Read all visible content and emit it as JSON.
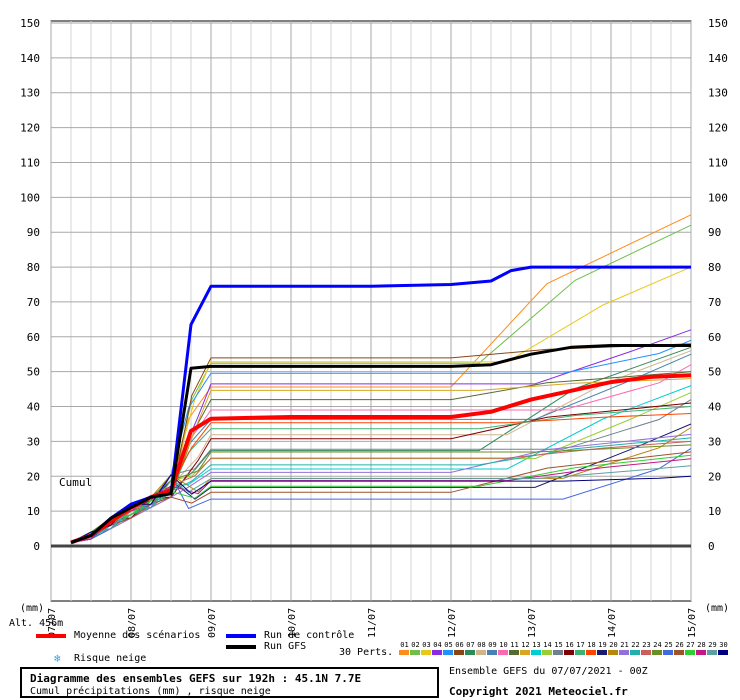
{
  "chart_data": {
    "type": "line",
    "annotation": "Cumul",
    "y_unit_label": "(mm)",
    "y_range": [
      0,
      150
    ],
    "y_ticks": [
      0,
      10,
      20,
      30,
      40,
      50,
      60,
      70,
      80,
      90,
      100,
      110,
      120,
      130,
      140,
      150
    ],
    "x_ticks": [
      "07/07",
      "08/07",
      "09/07",
      "10/07",
      "11/07",
      "12/07",
      "13/07",
      "14/07",
      "15/07"
    ],
    "x_range_days": [
      0,
      8
    ],
    "series": [
      {
        "name": "Moyenne des scénarios",
        "color": "#ff0000",
        "width": 4,
        "points": [
          [
            0.25,
            1
          ],
          [
            0.5,
            3
          ],
          [
            0.75,
            7
          ],
          [
            1,
            11
          ],
          [
            1.25,
            14
          ],
          [
            1.5,
            16
          ],
          [
            1.75,
            33
          ],
          [
            2,
            36.5
          ],
          [
            3,
            37
          ],
          [
            4,
            37
          ],
          [
            5,
            37
          ],
          [
            5.5,
            38.5
          ],
          [
            6,
            42
          ],
          [
            6.5,
            44.5
          ],
          [
            7,
            47
          ],
          [
            7.5,
            48.5
          ],
          [
            8,
            49
          ]
        ]
      },
      {
        "name": "Run de contrôle",
        "color": "#0000ff",
        "width": 3,
        "points": [
          [
            0.25,
            1
          ],
          [
            0.5,
            3
          ],
          [
            0.75,
            8
          ],
          [
            1,
            12
          ],
          [
            1.25,
            14
          ],
          [
            1.5,
            15
          ],
          [
            1.75,
            63.5
          ],
          [
            2,
            74.5
          ],
          [
            3,
            74.5
          ],
          [
            4,
            74.5
          ],
          [
            5,
            75
          ],
          [
            5.5,
            76
          ],
          [
            5.75,
            79
          ],
          [
            6,
            80
          ],
          [
            7,
            80
          ],
          [
            8,
            80
          ]
        ]
      },
      {
        "name": "Run GFS",
        "color": "#000000",
        "width": 3,
        "points": [
          [
            0.25,
            1
          ],
          [
            0.5,
            3
          ],
          [
            0.75,
            8
          ],
          [
            1,
            11
          ],
          [
            1.25,
            14
          ],
          [
            1.5,
            15
          ],
          [
            1.75,
            51
          ],
          [
            2,
            51.5
          ],
          [
            3,
            51.5
          ],
          [
            4,
            51.5
          ],
          [
            5,
            51.5
          ],
          [
            5.5,
            52
          ],
          [
            6,
            55
          ],
          [
            6.5,
            57
          ],
          [
            7,
            57.5
          ],
          [
            8,
            57.5
          ]
        ]
      }
    ],
    "perturbations": {
      "label": "30 Perts.",
      "ids": [
        "01",
        "02",
        "03",
        "04",
        "05",
        "06",
        "07",
        "08",
        "09",
        "10",
        "11",
        "12",
        "13",
        "14",
        "15",
        "16",
        "17",
        "18",
        "19",
        "20",
        "21",
        "22",
        "23",
        "24",
        "25",
        "26",
        "27",
        "28",
        "29",
        "30"
      ],
      "colors": [
        "#ff8c1a",
        "#6fbf4a",
        "#e8c81a",
        "#8a2be2",
        "#1e90ff",
        "#8b4513",
        "#2e8b57",
        "#d2b48c",
        "#4682b4",
        "#ff69b4",
        "#556b2f",
        "#daa520",
        "#00ced1",
        "#9acd32",
        "#708090",
        "#800000",
        "#3cb371",
        "#ff4500",
        "#191970",
        "#b8860b",
        "#9370db",
        "#20b2aa",
        "#cd5c5c",
        "#6b8e23",
        "#4169e1",
        "#a0522d",
        "#32cd32",
        "#c71585",
        "#5f9ea0",
        "#000080"
      ],
      "finals": [
        95,
        92,
        80,
        62,
        59,
        58,
        57,
        56,
        55,
        52,
        50,
        48,
        46,
        44,
        42,
        41,
        40,
        38,
        35,
        34,
        32,
        31,
        30,
        29,
        28,
        27,
        26,
        25,
        23,
        20
      ]
    }
  },
  "legend": {
    "mean_label": "Moyenne des scénarios",
    "control_label": "Run de contrôle",
    "gfs_label": "Run GFS",
    "snow_label": "Risque neige",
    "snow_icon": "snowflake-icon"
  },
  "altitude_label": "Alt. 456m",
  "footer": {
    "title": "Diagramme des ensembles GEFS sur 192h : 45.1N 7.7E",
    "subtitle": "Cumul précipitations (mm) , risque neige",
    "run_info": "Ensemble GEFS du 07/07/2021 - 00Z",
    "copyright": "Copyright 2021 Meteociel.fr"
  }
}
